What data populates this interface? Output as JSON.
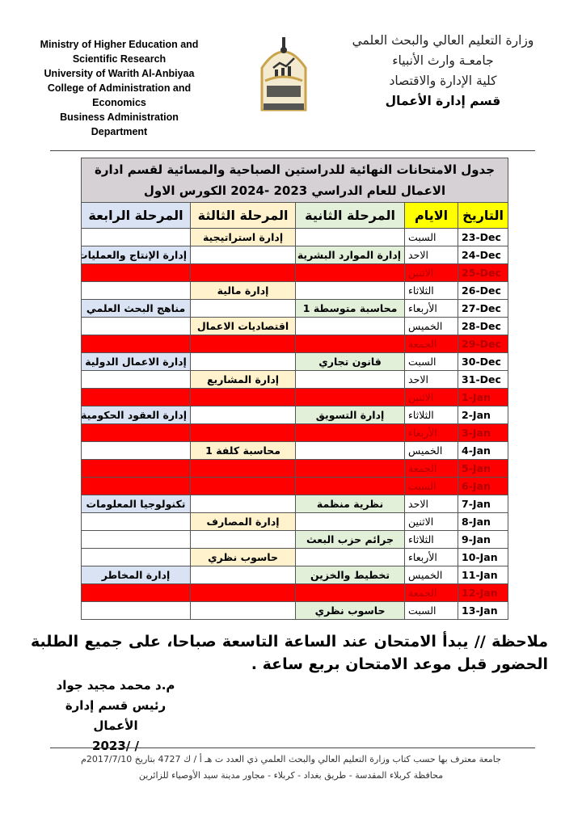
{
  "header": {
    "english_lines": [
      "Ministry of Higher Education and",
      "Scientific Research",
      "University of Warith Al-Anbiyaa",
      "College of Administration and",
      "Economics",
      "Business Administration",
      "Department"
    ],
    "arabic_lines": [
      "وزارة التعليم العالي والبحث العلمي",
      "جامعـة وارث الأنبياء",
      "كلية الإدارة والاقتصاد",
      "قسم إدارة الأعمال"
    ],
    "logo_text": "جامعة وارث الأنبياء - كلية الإدارة والاقتصاد"
  },
  "table": {
    "title": "جدول الامتحانات النهائية للدراستين الصباحية والمسائية لقسم ادارة الاعمال للعام الدراسي 2023 -2024 الكورس الاول",
    "columns": [
      "التاريخ",
      "الايام",
      "المرحلة الثانية",
      "المرحلة الثالثة",
      "المرحلة الرابعة"
    ],
    "colors": {
      "header_yellow": "#ffff00",
      "stage2": "#e2efd9",
      "stage3": "#fff2cc",
      "stage4": "#dae3f3",
      "holiday": "#ff0000"
    },
    "rows": [
      {
        "date": "23-Dec",
        "day": "السبت",
        "s2": "",
        "s3": "إدارة استراتيجية",
        "s4": "",
        "holiday": false
      },
      {
        "date": "24-Dec",
        "day": "الاحد",
        "s2": "إدارة الموارد البشرية",
        "s3": "",
        "s4": "إدارة الإنتاج والعمليات",
        "holiday": false
      },
      {
        "date": "25-Dec",
        "day": "الاثنين",
        "s2": "",
        "s3": "",
        "s4": "",
        "holiday": true
      },
      {
        "date": "26-Dec",
        "day": "الثلاثاء",
        "s2": "",
        "s3": "إدارة مالية",
        "s4": "",
        "holiday": false
      },
      {
        "date": "27-Dec",
        "day": "الأربعاء",
        "s2": "محاسبة متوسطة 1",
        "s3": "",
        "s4": "مناهج البحث العلمي",
        "holiday": false
      },
      {
        "date": "28-Dec",
        "day": "الخميس",
        "s2": "",
        "s3": "اقتصاديات الاعمال",
        "s4": "",
        "holiday": false
      },
      {
        "date": "29-Dec",
        "day": "الجمعة",
        "s2": "",
        "s3": "",
        "s4": "",
        "holiday": true
      },
      {
        "date": "30-Dec",
        "day": "السبت",
        "s2": "قانون تجاري",
        "s3": "",
        "s4": "إدارة الاعمال الدولية",
        "holiday": false
      },
      {
        "date": "31-Dec",
        "day": "الاحد",
        "s2": "",
        "s3": "إدارة المشاريع",
        "s4": "",
        "holiday": false
      },
      {
        "date": "1-Jan",
        "day": "الاثنين",
        "s2": "",
        "s3": "",
        "s4": "",
        "holiday": true
      },
      {
        "date": "2-Jan",
        "day": "الثلاثاء",
        "s2": "إدارة التسويق",
        "s3": "",
        "s4": "إدارة العقود الحكومية",
        "holiday": false
      },
      {
        "date": "3-Jan",
        "day": "الأربعاء",
        "s2": "",
        "s3": "",
        "s4": "",
        "holiday": true
      },
      {
        "date": "4-Jan",
        "day": "الخميس",
        "s2": "",
        "s3": "محاسبة كلفة 1",
        "s4": "",
        "holiday": false
      },
      {
        "date": "5-Jan",
        "day": "الجمعة",
        "s2": "",
        "s3": "",
        "s4": "",
        "holiday": true
      },
      {
        "date": "6-Jan",
        "day": "السبت",
        "s2": "",
        "s3": "",
        "s4": "",
        "holiday": true
      },
      {
        "date": "7-Jan",
        "day": "الاحد",
        "s2": "نظرية منظمة",
        "s3": "",
        "s4": "تكنولوجيا المعلومات",
        "holiday": false
      },
      {
        "date": "8-Jan",
        "day": "الاثنين",
        "s2": "",
        "s3": "إدارة المصارف",
        "s4": "",
        "holiday": false
      },
      {
        "date": "9-Jan",
        "day": "الثلاثاء",
        "s2": "جرائم حزب البعث",
        "s3": "",
        "s4": "",
        "holiday": false
      },
      {
        "date": "10-Jan",
        "day": "الأربعاء",
        "s2": "",
        "s3": "حاسوب نظري",
        "s4": "",
        "holiday": false
      },
      {
        "date": "11-Jan",
        "day": "الخميس",
        "s2": "تخطيط والخزين",
        "s3": "",
        "s4": "إدارة المخاطر",
        "holiday": false
      },
      {
        "date": "12-Jan",
        "day": "الجمعة",
        "s2": "",
        "s3": "",
        "s4": "",
        "holiday": true
      },
      {
        "date": "13-Jan",
        "day": "السبت",
        "s2": "حاسوب نظري",
        "s3": "",
        "s4": "",
        "holiday": false
      }
    ]
  },
  "note": "ملاحظة // يبدأ الامتحان عند الساعة التاسعة صباحا، على جميع الطلبة الحضور قبل موعد الامتحان بربع ساعة .",
  "signature": {
    "name": "م.د محمد مجيد جواد",
    "title": "رئيس قسم إدارة الأعمال",
    "date": "2023/     /"
  },
  "footer": {
    "line1": "جامعة معترف بها حسب كتاب وزارة التعليم العالي والبحث العلمي  ذي  العدد ت  هـ  أ / ك  4727  بتاريخ  2017/7/10م",
    "line2": "محافظة كربلاء المقدسة  - طريق بغداد - كربلاء  - مجاور مدينة سيد الأوصياء للزائرين"
  }
}
